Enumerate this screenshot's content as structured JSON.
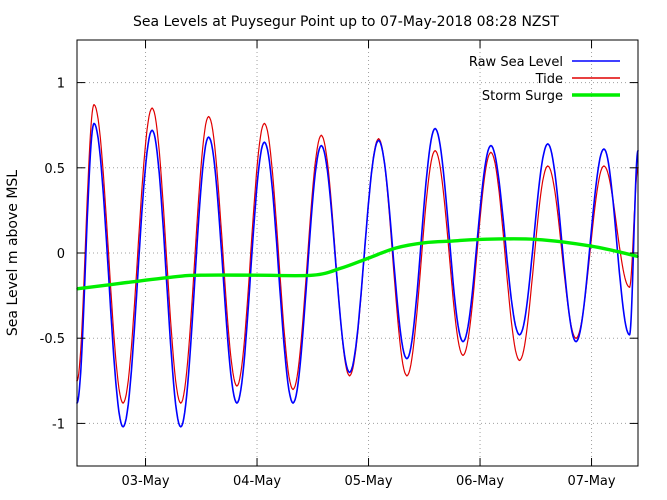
{
  "chart_data": {
    "type": "line",
    "title": "Sea Levels at Puysegur Point up to 07-May-2018 08:28 NZST",
    "ylabel": "Sea Level m above MSL",
    "xlabel": "",
    "ylim": [
      -1.25,
      1.25
    ],
    "xlim": [
      "2018-05-02 09:15",
      "2018-05-07 10:00"
    ],
    "yticks": [
      {
        "value": 1,
        "label": "1"
      },
      {
        "value": 0.5,
        "label": "0.5"
      },
      {
        "value": 0,
        "label": "0"
      },
      {
        "value": -0.5,
        "label": "-0.5"
      },
      {
        "value": -1,
        "label": "-1"
      }
    ],
    "xticks": [
      {
        "value": "2018-05-03 00:00",
        "label": "03-May"
      },
      {
        "value": "2018-05-04 00:00",
        "label": "04-May"
      },
      {
        "value": "2018-05-05 00:00",
        "label": "05-May"
      },
      {
        "value": "2018-05-06 00:00",
        "label": "06-May"
      },
      {
        "value": "2018-05-07 00:00",
        "label": "07-May"
      }
    ],
    "grid": true,
    "legend_position": "top-right",
    "series": [
      {
        "name": "Raw Sea Level",
        "color": "#0000ff",
        "x": [
          "2018-05-02 09:15",
          "2018-05-02 12:55",
          "2018-05-02 19:10",
          "2018-05-03 01:25",
          "2018-05-03 07:35",
          "2018-05-03 13:35",
          "2018-05-03 19:40",
          "2018-05-04 01:35",
          "2018-05-04 07:45",
          "2018-05-04 13:50",
          "2018-05-04 19:55",
          "2018-05-05 02:10",
          "2018-05-05 08:15",
          "2018-05-05 14:20",
          "2018-05-05 20:20",
          "2018-05-06 02:20",
          "2018-05-06 08:30",
          "2018-05-06 14:35",
          "2018-05-06 20:40",
          "2018-05-07 02:40",
          "2018-05-07 08:10",
          "2018-05-07 10:00"
        ],
        "values": [
          -0.88,
          0.76,
          -1.02,
          0.72,
          -1.02,
          0.68,
          -0.88,
          0.65,
          -0.88,
          0.63,
          -0.7,
          0.66,
          -0.62,
          0.73,
          -0.52,
          0.63,
          -0.48,
          0.64,
          -0.52,
          0.61,
          -0.48,
          0.6
        ]
      },
      {
        "name": "Tide",
        "color": "#e00000",
        "x": [
          "2018-05-02 09:15",
          "2018-05-02 12:55",
          "2018-05-02 19:10",
          "2018-05-03 01:25",
          "2018-05-03 07:35",
          "2018-05-03 13:35",
          "2018-05-03 19:40",
          "2018-05-04 01:35",
          "2018-05-04 07:45",
          "2018-05-04 13:50",
          "2018-05-04 19:55",
          "2018-05-05 02:10",
          "2018-05-05 08:15",
          "2018-05-05 14:20",
          "2018-05-05 20:20",
          "2018-05-06 02:20",
          "2018-05-06 08:30",
          "2018-05-06 14:35",
          "2018-05-06 20:40",
          "2018-05-07 02:40",
          "2018-05-07 08:10",
          "2018-05-07 10:00"
        ],
        "values": [
          -0.75,
          0.87,
          -0.88,
          0.85,
          -0.88,
          0.8,
          -0.78,
          0.76,
          -0.8,
          0.69,
          -0.72,
          0.67,
          -0.72,
          0.6,
          -0.6,
          0.59,
          -0.63,
          0.51,
          -0.5,
          0.51,
          -0.2,
          0.5
        ]
      },
      {
        "name": "Storm Surge",
        "color": "#00ee00",
        "x": [
          "2018-05-02 09:15",
          "2018-05-02 18:00",
          "2018-05-03 06:00",
          "2018-05-03 12:00",
          "2018-05-04 00:00",
          "2018-05-04 12:00",
          "2018-05-04 18:00",
          "2018-05-05 00:00",
          "2018-05-05 06:00",
          "2018-05-05 12:00",
          "2018-05-05 18:00",
          "2018-05-06 00:00",
          "2018-05-06 12:00",
          "2018-05-07 00:00",
          "2018-05-07 10:00"
        ],
        "values": [
          -0.21,
          -0.18,
          -0.14,
          -0.13,
          -0.13,
          -0.13,
          -0.09,
          -0.03,
          0.03,
          0.06,
          0.07,
          0.08,
          0.08,
          0.04,
          -0.02
        ]
      }
    ]
  }
}
